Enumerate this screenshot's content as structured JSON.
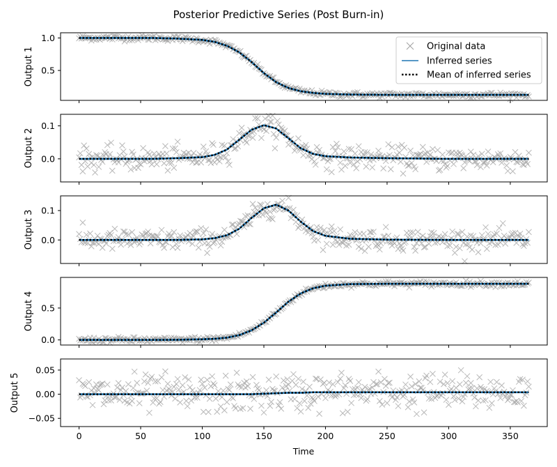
{
  "chart_data": {
    "type": "line",
    "title": "Posterior Predictive Series (Post Burn-in)",
    "xlabel": "Time",
    "xlim": [
      -15,
      380
    ],
    "xticks": [
      0,
      50,
      100,
      150,
      200,
      250,
      300,
      350
    ],
    "x": [
      0,
      20,
      40,
      60,
      80,
      100,
      110,
      120,
      130,
      140,
      150,
      160,
      170,
      180,
      190,
      200,
      220,
      250,
      300,
      365
    ],
    "legend": {
      "placement": "top-right of first panel",
      "entries": [
        "Original data",
        "Inferred series",
        "Mean of inferred series"
      ]
    },
    "colors": {
      "data_marker": "#a0a0a0",
      "inferred": "#1f77b4",
      "mean": "#000000"
    },
    "panels": [
      {
        "ylabel": "Output 1",
        "ylim": [
          0.04,
          1.08
        ],
        "yticks": [
          0.5,
          1.0
        ],
        "ytick_labels": [
          "0.5",
          "1.0"
        ],
        "mean_values": [
          1.0,
          1.0,
          1.0,
          1.0,
          0.99,
          0.97,
          0.94,
          0.88,
          0.78,
          0.63,
          0.46,
          0.32,
          0.23,
          0.18,
          0.155,
          0.14,
          0.13,
          0.125,
          0.125,
          0.125
        ],
        "noise_sd": 0.02,
        "legend": true
      },
      {
        "ylabel": "Output 2",
        "ylim": [
          -0.07,
          0.135
        ],
        "yticks": [
          0.0,
          0.1
        ],
        "ytick_labels": [
          "0.0",
          "0.1"
        ],
        "mean_values": [
          0.0,
          0.0,
          0.0,
          0.0,
          0.002,
          0.005,
          0.012,
          0.028,
          0.058,
          0.088,
          0.102,
          0.092,
          0.062,
          0.032,
          0.015,
          0.008,
          0.004,
          0.002,
          0.0,
          0.0
        ],
        "noise_sd": 0.018
      },
      {
        "ylabel": "Output 3",
        "ylim": [
          -0.08,
          0.15
        ],
        "yticks": [
          0.0,
          0.1
        ],
        "ytick_labels": [
          "0.0",
          "0.1"
        ],
        "mean_values": [
          0.0,
          0.0,
          0.0,
          0.0,
          0.0,
          0.002,
          0.006,
          0.016,
          0.038,
          0.075,
          0.108,
          0.12,
          0.1,
          0.062,
          0.03,
          0.014,
          0.004,
          0.001,
          0.0,
          0.0
        ],
        "noise_sd": 0.018
      },
      {
        "ylabel": "Output 4",
        "ylim": [
          -0.08,
          0.98
        ],
        "yticks": [
          0.0,
          0.5
        ],
        "ytick_labels": [
          "0.0",
          "0.5"
        ],
        "mean_values": [
          0.0,
          0.0,
          0.0,
          0.0,
          0.002,
          0.01,
          0.018,
          0.035,
          0.075,
          0.15,
          0.27,
          0.43,
          0.6,
          0.73,
          0.81,
          0.85,
          0.875,
          0.88,
          0.88,
          0.88
        ],
        "noise_sd": 0.02
      },
      {
        "ylabel": "Output 5",
        "ylim": [
          -0.067,
          0.073
        ],
        "yticks": [
          -0.05,
          0.0,
          0.05
        ],
        "ytick_labels": [
          "−0.05",
          "0.00",
          "0.05"
        ],
        "mean_values": [
          0.0,
          0.0,
          0.0,
          0.0,
          0.0,
          0.0,
          0.0,
          0.0,
          0.0,
          0.0,
          0.001,
          0.002,
          0.003,
          0.003,
          0.004,
          0.004,
          0.004,
          0.004,
          0.004,
          0.004
        ],
        "noise_sd": 0.02
      }
    ]
  }
}
